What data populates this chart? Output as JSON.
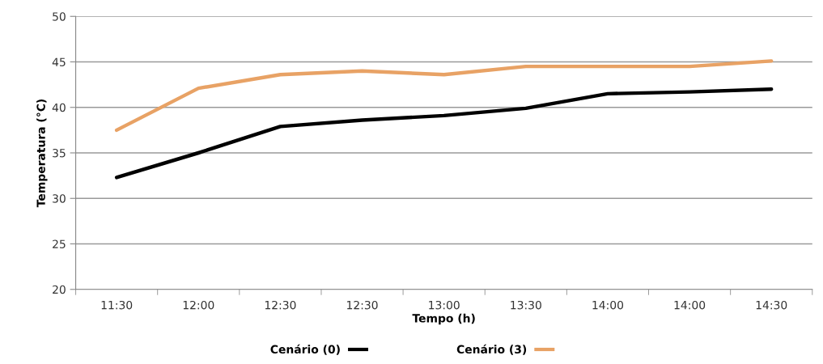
{
  "chart_data": {
    "type": "line",
    "xlabel": "Tempo (h)",
    "ylabel": "Temperatura (°C)",
    "categories": [
      "11:30",
      "12:00",
      "12:30",
      "12:30",
      "13:00",
      "13:30",
      "14:00",
      "14:00",
      "14:30"
    ],
    "series": [
      {
        "name": "Cenário (0)",
        "color": "#000000",
        "values": [
          32.3,
          35.0,
          37.9,
          38.6,
          39.1,
          39.9,
          41.5,
          41.7,
          42.0
        ]
      },
      {
        "name": "Cenário (3)",
        "color": "#e8a265",
        "values": [
          37.5,
          42.1,
          43.6,
          44.0,
          43.6,
          44.5,
          44.5,
          44.5,
          45.1
        ]
      }
    ],
    "ylim": [
      20,
      50
    ],
    "yticks": [
      20,
      25,
      30,
      35,
      40,
      45,
      50
    ],
    "grid": "y",
    "legend": "bottom",
    "marker": "none",
    "line_style": "solid"
  }
}
